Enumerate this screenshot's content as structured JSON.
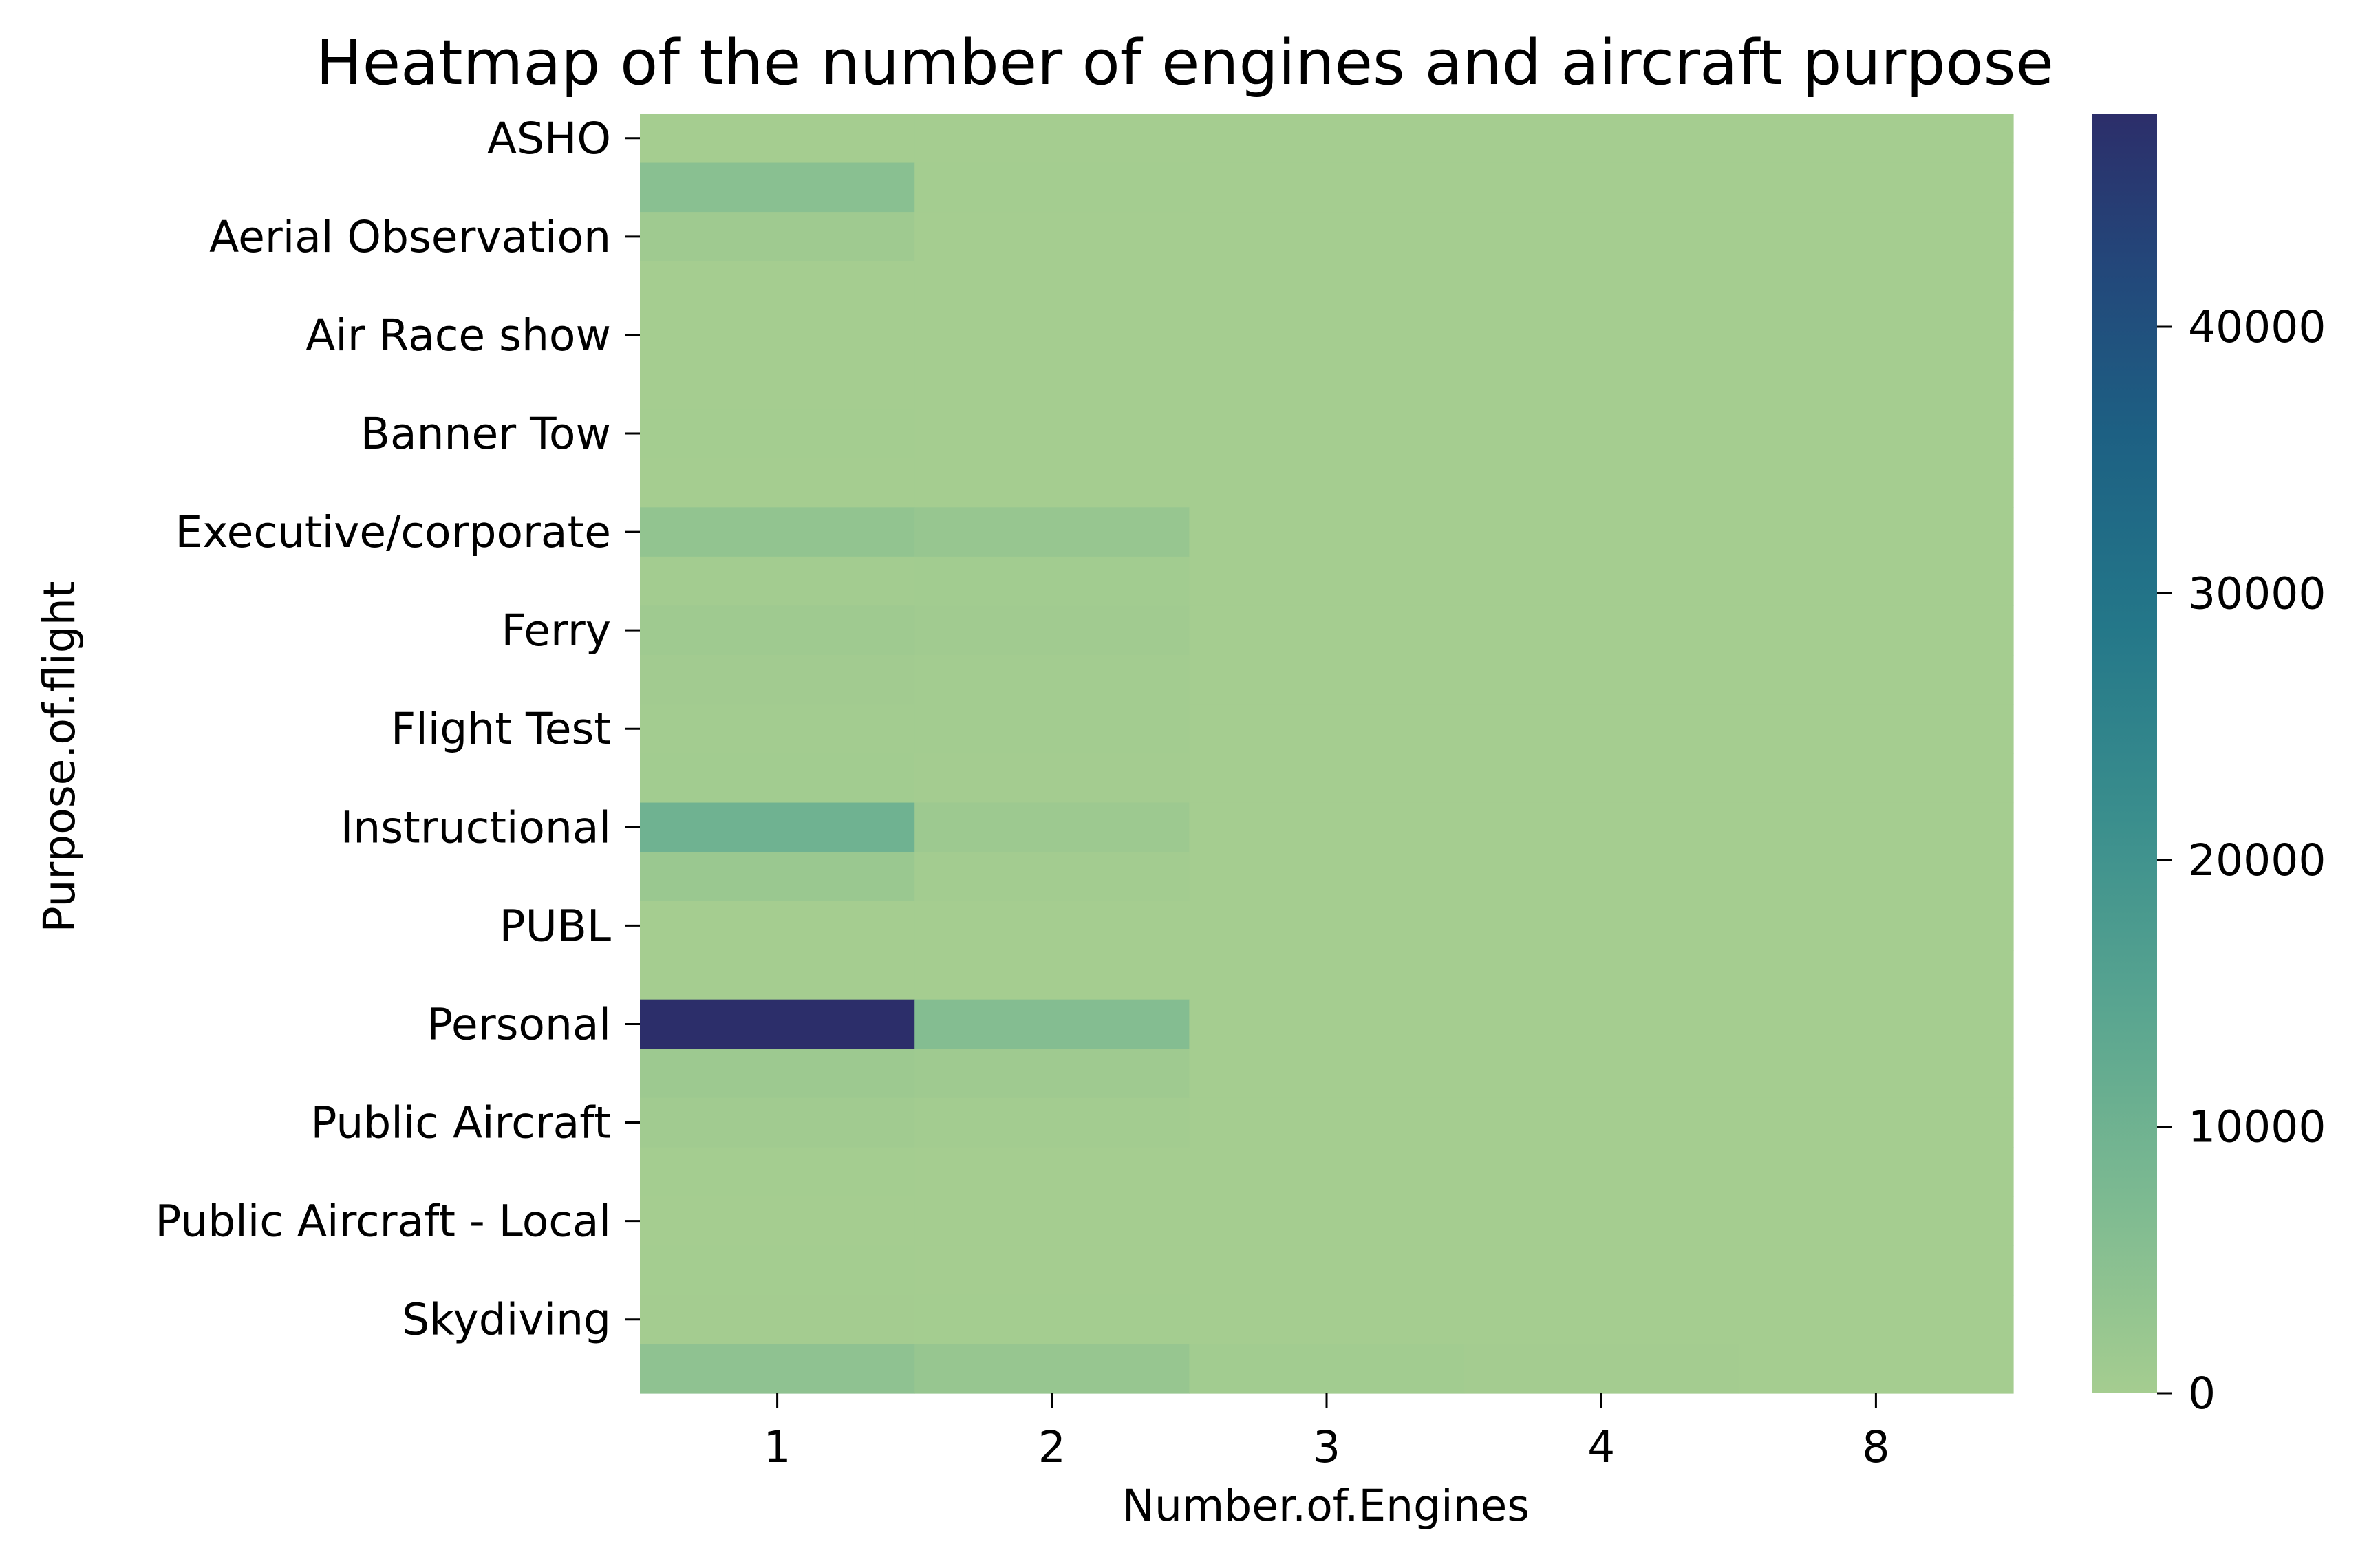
{
  "chart_data": {
    "type": "heatmap",
    "title": "Heatmap of  the number of engines and aircraft purpose",
    "xlabel": "Number.of.Engines",
    "ylabel": "Purpose.of.flight",
    "x_categories": [
      "1",
      "2",
      "3",
      "4",
      "8"
    ],
    "y_categories": [
      "ASHO",
      "",
      "Aerial Observation",
      "",
      "Air Race show",
      "",
      "Banner Tow",
      "",
      "Executive/corporate",
      "",
      "Ferry",
      "",
      "Flight Test",
      "",
      "Instructional",
      "",
      "PUBL",
      "",
      "Personal",
      "",
      "Public Aircraft",
      "",
      "Public Aircraft - Local",
      "",
      "Skydiving",
      ""
    ],
    "values": [
      [
        0,
        0,
        0,
        0,
        0
      ],
      [
        5000,
        100,
        0,
        0,
        0
      ],
      [
        1000,
        30,
        0,
        0,
        0
      ],
      [
        10,
        5,
        0,
        0,
        0
      ],
      [
        50,
        10,
        0,
        0,
        0
      ],
      [
        0,
        0,
        0,
        0,
        0
      ],
      [
        100,
        0,
        0,
        0,
        0
      ],
      [
        0,
        0,
        0,
        0,
        0
      ],
      [
        3500,
        2500,
        10,
        0,
        0
      ],
      [
        300,
        500,
        10,
        0,
        0
      ],
      [
        1000,
        700,
        20,
        0,
        0
      ],
      [
        600,
        400,
        10,
        0,
        0
      ],
      [
        400,
        300,
        10,
        0,
        0
      ],
      [
        500,
        200,
        10,
        0,
        0
      ],
      [
        10000,
        1500,
        10,
        0,
        0
      ],
      [
        2000,
        300,
        5,
        0,
        0
      ],
      [
        0,
        0,
        0,
        0,
        0
      ],
      [
        0,
        0,
        0,
        0,
        0
      ],
      [
        48000,
        6000,
        50,
        0,
        0
      ],
      [
        1500,
        1000,
        10,
        0,
        0
      ],
      [
        700,
        300,
        5,
        0,
        0
      ],
      [
        100,
        50,
        0,
        0,
        0
      ],
      [
        0,
        0,
        0,
        0,
        0
      ],
      [
        150,
        50,
        0,
        0,
        0
      ],
      [
        200,
        100,
        0,
        0,
        0
      ],
      [
        4000,
        2500,
        500,
        200,
        50
      ]
    ],
    "colorbar": {
      "range": [
        0,
        48000
      ],
      "ticks": [
        "0",
        "10000",
        "20000",
        "30000",
        "40000"
      ],
      "colormap": "crest"
    }
  }
}
